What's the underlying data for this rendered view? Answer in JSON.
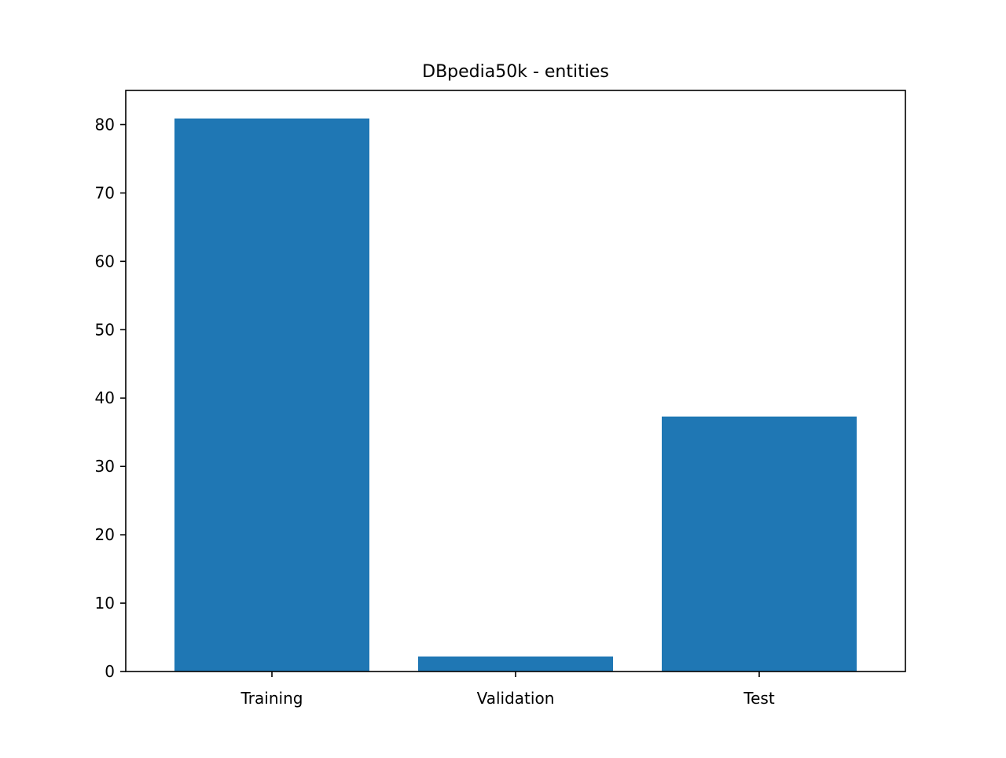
{
  "chart_data": {
    "type": "bar",
    "title": "DBpedia50k - entities",
    "xlabel": "",
    "ylabel": "",
    "categories": [
      "Training",
      "Validation",
      "Test"
    ],
    "values": [
      80.9,
      2.2,
      37.3
    ],
    "ylim": [
      0,
      85
    ],
    "yticks": [
      0,
      10,
      20,
      30,
      40,
      50,
      60,
      70,
      80
    ],
    "grid": false,
    "legend": "none",
    "bar_color": "#1f77b4"
  }
}
